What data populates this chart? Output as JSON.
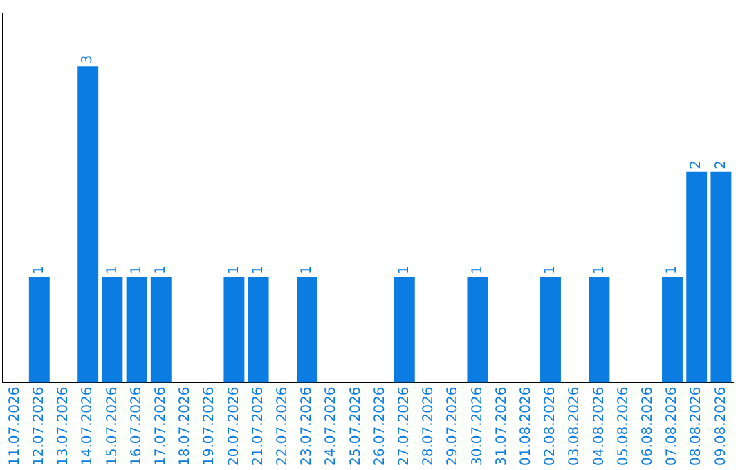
{
  "chart_data": {
    "type": "bar",
    "categories": [
      "11.07.2026",
      "12.07.2026",
      "13.07.2026",
      "14.07.2026",
      "15.07.2026",
      "16.07.2026",
      "17.07.2026",
      "18.07.2026",
      "19.07.2026",
      "20.07.2026",
      "21.07.2026",
      "22.07.2026",
      "23.07.2026",
      "24.07.2026",
      "25.07.2026",
      "26.07.2026",
      "27.07.2026",
      "28.07.2026",
      "29.07.2026",
      "30.07.2026",
      "31.07.2026",
      "01.08.2026",
      "02.08.2026",
      "03.08.2026",
      "04.08.2026",
      "05.08.2026",
      "06.08.2026",
      "07.08.2026",
      "08.08.2026",
      "09.08.2026"
    ],
    "values": [
      0,
      1,
      0,
      3,
      1,
      1,
      1,
      0,
      0,
      1,
      1,
      0,
      1,
      0,
      0,
      0,
      1,
      0,
      0,
      1,
      0,
      0,
      1,
      0,
      1,
      0,
      0,
      1,
      2,
      2
    ],
    "value_labels": [
      null,
      "1",
      null,
      "3",
      "1",
      "1",
      "1",
      null,
      null,
      "1",
      "1",
      null,
      "1",
      null,
      null,
      null,
      "1",
      null,
      null,
      "1",
      null,
      null,
      "1",
      null,
      "1",
      null,
      null,
      "1",
      "2",
      "2"
    ],
    "color": "#0b7ce2",
    "grid": false,
    "legend": false,
    "tick_labels": "x"
  }
}
